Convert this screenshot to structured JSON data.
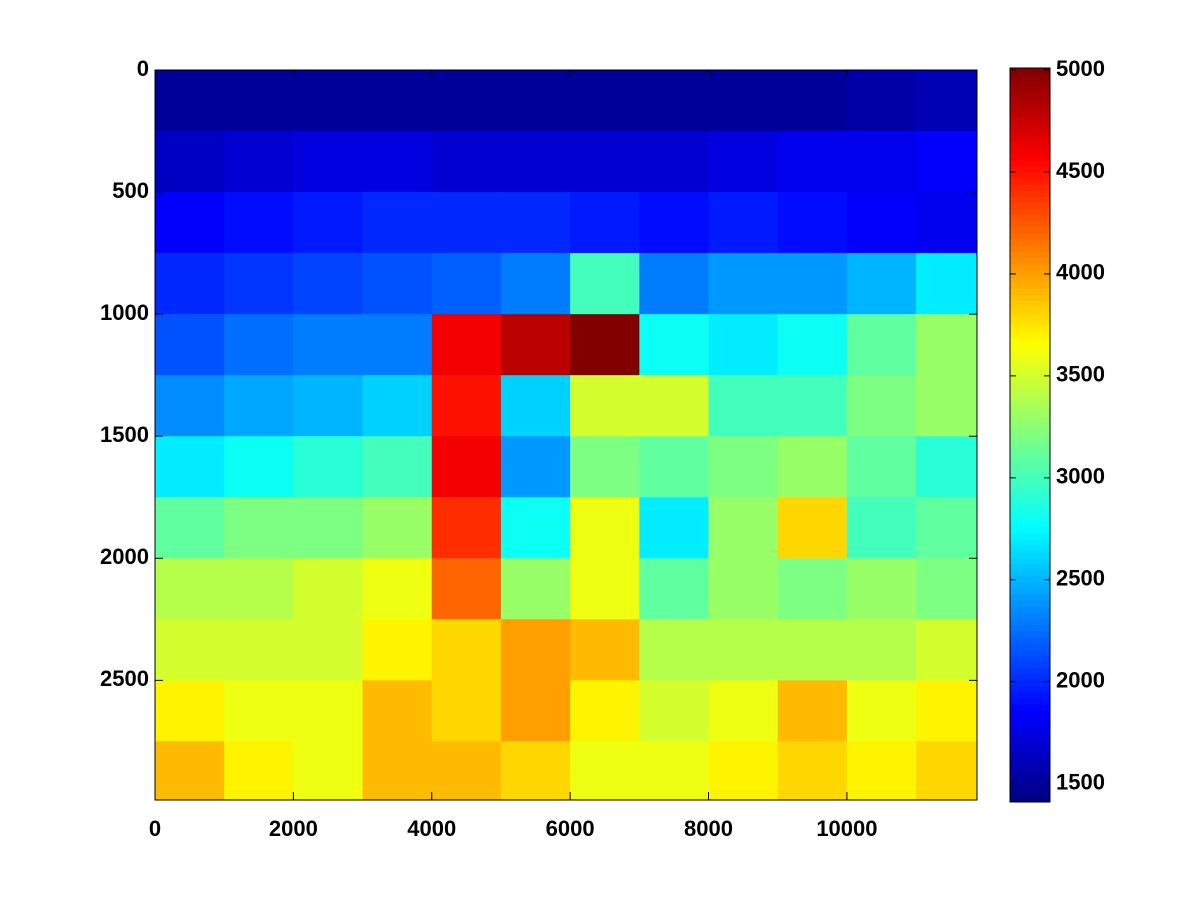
{
  "chart_data": {
    "type": "heatmap",
    "colormap": "jet",
    "x": [
      500,
      1500,
      2500,
      3500,
      4500,
      5500,
      6500,
      7500,
      8500,
      9500,
      10500,
      11500
    ],
    "y": [
      125,
      375,
      625,
      875,
      1125,
      1375,
      1625,
      1875,
      2125,
      2375,
      2625,
      2875
    ],
    "z": [
      [
        1500,
        1500,
        1500,
        1500,
        1500,
        1500,
        1500,
        1500,
        1500,
        1500,
        1550,
        1600
      ],
      [
        1650,
        1700,
        1750,
        1750,
        1700,
        1700,
        1700,
        1700,
        1750,
        1800,
        1800,
        1850
      ],
      [
        1850,
        1900,
        1950,
        2000,
        2000,
        2000,
        1950,
        1900,
        1950,
        1900,
        1850,
        1800
      ],
      [
        2000,
        2050,
        2100,
        2150,
        2200,
        2300,
        3000,
        2300,
        2400,
        2400,
        2500,
        2700
      ],
      [
        2150,
        2250,
        2300,
        2300,
        4600,
        4800,
        5000,
        2800,
        2700,
        2800,
        3100,
        3300
      ],
      [
        2350,
        2450,
        2500,
        2600,
        4500,
        2600,
        3500,
        3500,
        3000,
        3000,
        3200,
        3300
      ],
      [
        2700,
        2800,
        2900,
        3000,
        4600,
        2400,
        3200,
        3100,
        3200,
        3300,
        3100,
        2900
      ],
      [
        3100,
        3200,
        3200,
        3300,
        4400,
        2800,
        3600,
        2700,
        3300,
        3800,
        3000,
        3100
      ],
      [
        3400,
        3400,
        3500,
        3600,
        4200,
        3300,
        3600,
        3100,
        3300,
        3200,
        3300,
        3200
      ],
      [
        3500,
        3500,
        3500,
        3700,
        3800,
        4000,
        3900,
        3400,
        3400,
        3400,
        3400,
        3500
      ],
      [
        3700,
        3600,
        3600,
        3900,
        3800,
        4000,
        3700,
        3500,
        3600,
        3900,
        3600,
        3700
      ],
      [
        3900,
        3700,
        3600,
        3900,
        3900,
        3800,
        3600,
        3600,
        3700,
        3800,
        3700,
        3800
      ]
    ],
    "xlim": [
      0,
      11880
    ],
    "xticks": [
      0,
      2000,
      4000,
      6000,
      8000,
      10000
    ],
    "ylim": [
      0,
      2990
    ],
    "yticks": [
      0,
      500,
      1000,
      1500,
      2000,
      2500
    ],
    "y_reversed": true,
    "clim": [
      1410,
      5010
    ],
    "cticks": [
      1500,
      2000,
      2500,
      3000,
      3500,
      4000,
      4500,
      5000
    ]
  }
}
